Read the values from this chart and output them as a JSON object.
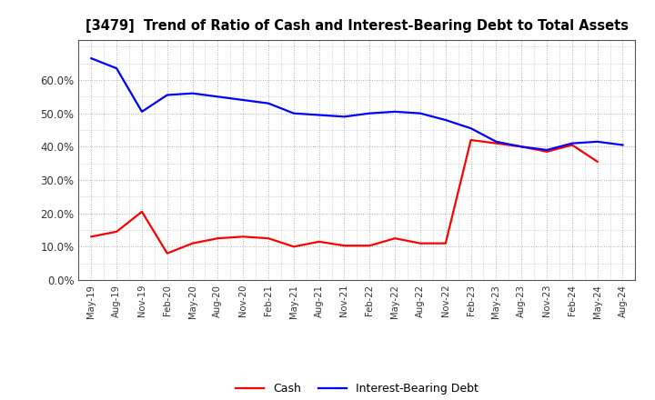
{
  "title": "[3479]  Trend of Ratio of Cash and Interest-Bearing Debt to Total Assets",
  "x_labels": [
    "May-19",
    "Aug-19",
    "Nov-19",
    "Feb-20",
    "May-20",
    "Aug-20",
    "Nov-20",
    "Feb-21",
    "May-21",
    "Aug-21",
    "Nov-21",
    "Feb-22",
    "May-22",
    "Aug-22",
    "Nov-22",
    "Feb-23",
    "May-23",
    "Aug-23",
    "Nov-23",
    "Feb-24",
    "May-24",
    "Aug-24"
  ],
  "cash": [
    0.13,
    0.145,
    0.205,
    0.08,
    0.11,
    0.125,
    0.13,
    0.125,
    0.1,
    0.115,
    0.103,
    0.103,
    0.125,
    0.11,
    0.11,
    0.42,
    0.41,
    0.4,
    0.385,
    0.405,
    0.355,
    null
  ],
  "debt": [
    0.665,
    0.635,
    0.505,
    0.555,
    0.56,
    0.55,
    0.54,
    0.53,
    0.5,
    0.495,
    0.49,
    0.5,
    0.505,
    0.5,
    0.48,
    0.455,
    0.415,
    0.4,
    0.39,
    0.41,
    0.415,
    0.405
  ],
  "cash_color": "#FF0000",
  "debt_color": "#0000FF",
  "bg_color": "#FFFFFF",
  "plot_bg_color": "#FFFFFF",
  "grid_color": "#999999",
  "ylim": [
    0.0,
    0.72
  ],
  "yticks": [
    0.0,
    0.1,
    0.2,
    0.3,
    0.4,
    0.5,
    0.6
  ],
  "legend_cash": "Cash",
  "legend_debt": "Interest-Bearing Debt",
  "line_width": 1.6
}
